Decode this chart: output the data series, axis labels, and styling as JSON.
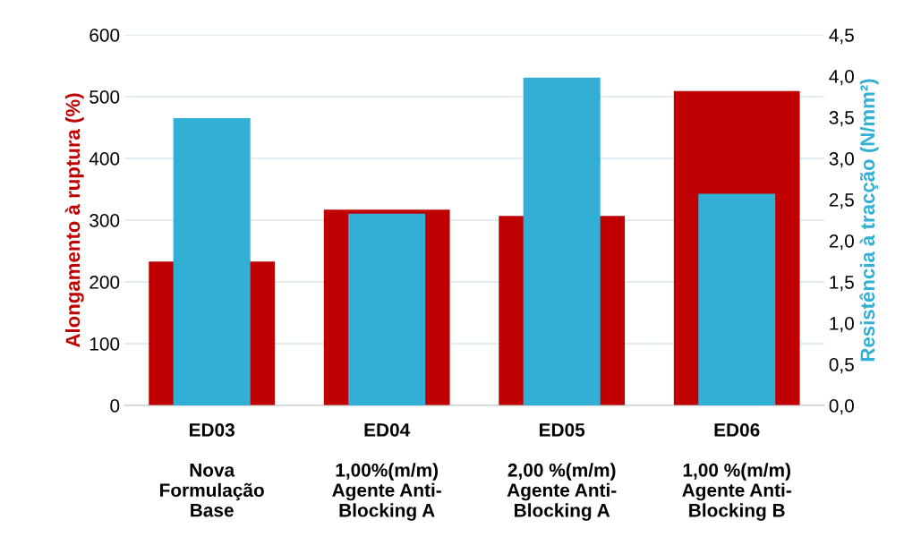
{
  "chart_data": {
    "type": "bar",
    "categories": [
      "ED03\n\nNova\nFormulação\nBase",
      "ED04\n\n1,00%(m/m)\nAgente Anti-\nBlocking A",
      "ED05\n\n2,00 %(m/m)\nAgente Anti-\nBlocking A",
      "ED06\n\n1,00 %(m/m)\nAgente Anti-\nBlocking B"
    ],
    "series": [
      {
        "color": "#c00000",
        "values": [
          233,
          317,
          307,
          509
        ]
      },
      {
        "color": "#31afd4",
        "axis": "y2",
        "values": [
          3.49,
          2.33,
          3.98,
          2.57
        ]
      }
    ],
    "ylabel": "Alongamento à ruptura (%)",
    "y2label": "Resistência à tracção (N/mm²)",
    "ylim": [
      0,
      600
    ],
    "yticks": [
      0,
      100,
      200,
      300,
      400,
      500,
      600
    ],
    "y2lim": [
      0,
      4.5
    ],
    "y2ticks": [
      {
        "value": 0,
        "label": "0,0"
      },
      {
        "value": 0.5,
        "label": "0,5"
      },
      {
        "value": 1,
        "label": "1,0"
      },
      {
        "value": 1.5,
        "label": "1,5"
      },
      {
        "value": 2,
        "label": "2,0"
      },
      {
        "value": 2.5,
        "label": "2,5"
      },
      {
        "value": 3,
        "label": "3,0"
      },
      {
        "value": 3.5,
        "label": "3,5"
      },
      {
        "value": 4,
        "label": "4,0"
      },
      {
        "value": 4.5,
        "label": "4,5"
      }
    ],
    "grid": "y"
  }
}
